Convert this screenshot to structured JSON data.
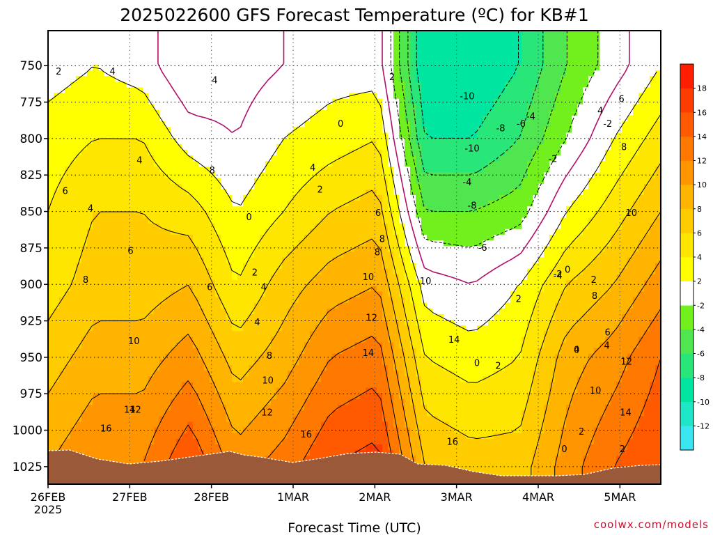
{
  "chart_data": {
    "type": "heatmap",
    "title": "2025022600 GFS Forecast Temperature (ºC) for KB#1",
    "xlabel": "Forecast Time (UTC)",
    "x_ticks": [
      "26FEB",
      "27FEB",
      "28FEB",
      "1MAR",
      "2MAR",
      "3MAR",
      "4MAR",
      "5MAR"
    ],
    "x_year": "2025",
    "x_range_days": [
      0,
      7.5
    ],
    "y_ticks": [
      "750",
      "775",
      "800",
      "825",
      "850",
      "875",
      "900",
      "925",
      "950",
      "975",
      "1000",
      "1025"
    ],
    "ylim": [
      1037,
      726
    ],
    "grid": true,
    "colorbar": {
      "levels": [
        -14,
        -12,
        -10,
        -8,
        -6,
        -4,
        -2,
        2,
        4,
        6,
        8,
        10,
        12,
        14,
        16,
        18,
        20
      ],
      "labels": [
        "-12",
        "-10",
        "-8",
        "-6",
        "-4",
        "-2",
        "2",
        "4",
        "6",
        "8",
        "10",
        "12",
        "14",
        "16",
        "18"
      ],
      "colors": [
        "#3ce6f0",
        "#20e6c8",
        "#00e6a0",
        "#28e678",
        "#50e650",
        "#72f01e",
        "#ffffff",
        "#ffff00",
        "#ffe600",
        "#ffcc00",
        "#ffb400",
        "#ff9600",
        "#ff7800",
        "#ff5a00",
        "#ff3c00",
        "#ff1e00"
      ]
    },
    "series": [
      {
        "values": [
          [
            10,
            7,
            5,
            4,
            3,
            1
          ],
          [
            12,
            9,
            7,
            6,
            4,
            2
          ],
          [
            12,
            9,
            7,
            6,
            4,
            1
          ],
          [
            16,
            11,
            8,
            5,
            1,
            -2
          ],
          [
            11,
            7,
            4,
            2,
            0,
            -1
          ],
          [
            13,
            9,
            7,
            4,
            2,
            0
          ],
          [
            16,
            12,
            9,
            6,
            3,
            1
          ],
          [
            17,
            13,
            10,
            7,
            4,
            1
          ],
          [
            8,
            4,
            1,
            -4,
            -8,
            -10
          ],
          [
            7,
            3,
            0,
            -4,
            -8,
            -10
          ],
          [
            7,
            4,
            2,
            -3,
            -6,
            -8
          ],
          [
            11,
            9,
            6,
            2,
            -2,
            -4
          ],
          [
            14,
            11,
            8,
            5,
            2,
            -1
          ],
          [
            16,
            14,
            11,
            8,
            5,
            2
          ]
        ]
      }
    ],
    "contour_labels": [
      "2",
      "4",
      "6",
      "4",
      "4",
      "6",
      "8",
      "10",
      "12",
      "14",
      "16",
      "4",
      "8",
      "6",
      "4",
      "8",
      "10",
      "12",
      "16",
      "0",
      "2",
      "4",
      "4",
      "2",
      "0",
      "8",
      "10",
      "14",
      "16",
      "2",
      "6",
      "8",
      "10",
      "12",
      "14",
      "-10",
      "-10",
      "-8",
      "-6",
      "-4",
      "-8",
      "-6",
      "-4",
      "2",
      "-2",
      "0",
      "-4",
      "-2",
      "-2",
      "0",
      "2",
      "2",
      "0",
      "2",
      "4",
      "4",
      "6",
      "8",
      "10",
      "12",
      "14",
      "2",
      "4",
      "6",
      "8",
      "10",
      "0"
    ],
    "credit": "coolwx.com/models"
  }
}
